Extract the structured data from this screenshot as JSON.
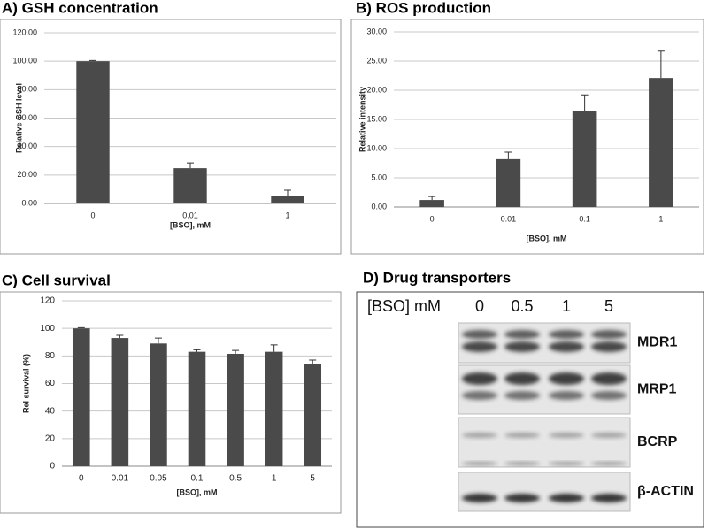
{
  "chart_data": [
    {
      "type": "bar",
      "title": "A) GSH concentration",
      "x_label": "[BSO], mM",
      "y_label": "Relative GSH level",
      "categories": [
        "0",
        "0.01",
        "1"
      ],
      "values": [
        100,
        24.8,
        5
      ],
      "errors": [
        0.5,
        3.7,
        4.3
      ],
      "color": "#4a4a4a",
      "ylim": [
        0,
        120
      ],
      "yticks": [
        {
          "value": 0,
          "label": "0.00"
        },
        {
          "value": 20,
          "label": "20.00"
        },
        {
          "value": 40,
          "label": "40.00"
        },
        {
          "value": 60,
          "label": "60.00"
        },
        {
          "value": 80,
          "label": "80.00"
        },
        {
          "value": 100,
          "label": "100.00"
        },
        {
          "value": 120,
          "label": "120.00"
        }
      ],
      "grid": true
    },
    {
      "type": "bar",
      "title": "B) ROS production",
      "x_label": "[BSO], mM",
      "y_label": "Relative intensity",
      "categories": [
        "0",
        "0.01",
        "0.1",
        "1"
      ],
      "values": [
        1.2,
        8.2,
        16.4,
        22.1
      ],
      "errors": [
        0.6,
        1.2,
        2.8,
        4.6
      ],
      "color": "#4a4a4a",
      "ylim": [
        0,
        30
      ],
      "yticks": [
        {
          "value": 0,
          "label": "0.00"
        },
        {
          "value": 5,
          "label": "5.00"
        },
        {
          "value": 10,
          "label": "10.00"
        },
        {
          "value": 15,
          "label": "15.00"
        },
        {
          "value": 20,
          "label": "20.00"
        },
        {
          "value": 25,
          "label": "25.00"
        },
        {
          "value": 30,
          "label": "30.00"
        }
      ],
      "grid": true
    },
    {
      "type": "bar",
      "title": "C) Cell survival",
      "x_label": "[BSO], mM",
      "y_label": "Rel survival (%)",
      "categories": [
        "0",
        "0.01",
        "0.05",
        "0.1",
        "0.5",
        "1",
        "5"
      ],
      "values": [
        100,
        93,
        89,
        83,
        81.5,
        83,
        74
      ],
      "errors": [
        0.5,
        2,
        4,
        1.5,
        2.5,
        5,
        3
      ],
      "color": "#4a4a4a",
      "ylim": [
        0,
        120
      ],
      "yticks": [
        0,
        20,
        40,
        60,
        80,
        100,
        120
      ],
      "grid": true
    }
  ],
  "blot": {
    "title": "D) Drug transporters",
    "header": "[BSO] mM",
    "lanes": [
      "0",
      "0.5",
      "1",
      "5"
    ],
    "bands": [
      "MDR1",
      "MRP1",
      "BCRP",
      "β-ACTIN"
    ]
  }
}
